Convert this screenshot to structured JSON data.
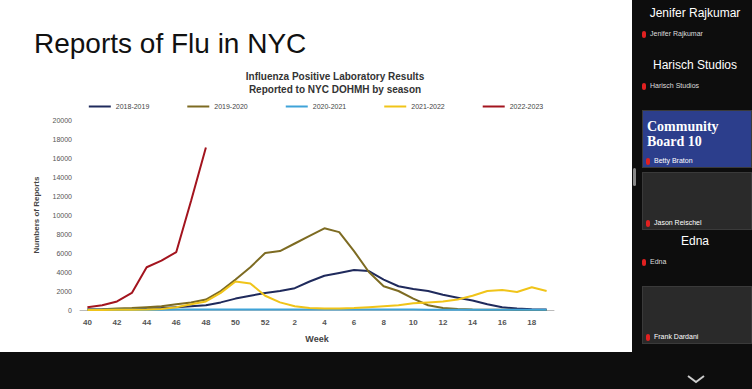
{
  "slide": {
    "title": "Reports of Flu in NYC"
  },
  "chart_data": {
    "type": "line",
    "title": "Influenza Positive Laboratory Results",
    "subtitle": "Reported to NYC DOHMH by season",
    "x_label": "Week",
    "y_label": "Numbers of Reports",
    "categories": [
      "40",
      null,
      "42",
      null,
      "44",
      null,
      "46",
      null,
      "48",
      null,
      "50",
      null,
      "52",
      null,
      "2",
      null,
      "4",
      null,
      "6",
      null,
      "8",
      null,
      "10",
      null,
      "12",
      null,
      "14",
      null,
      "16",
      null,
      "18",
      null
    ],
    "series": [
      {
        "name": "2018-2019",
        "color": "#1f2a5c",
        "values": [
          50,
          60,
          80,
          100,
          150,
          200,
          300,
          400,
          500,
          800,
          1200,
          1500,
          1800,
          2000,
          2300,
          3000,
          3600,
          3900,
          4200,
          4100,
          3200,
          2500,
          2200,
          2000,
          1600,
          1300,
          1000,
          600,
          300,
          150,
          80,
          50
        ]
      },
      {
        "name": "2019-2020",
        "color": "#7d6b22",
        "values": [
          50,
          80,
          150,
          200,
          300,
          400,
          600,
          800,
          1100,
          2000,
          3200,
          4500,
          6000,
          6200,
          7000,
          7800,
          8600,
          8200,
          6200,
          4000,
          2500,
          2000,
          1200,
          500,
          200,
          100,
          50,
          30,
          20,
          10,
          10,
          10
        ]
      },
      {
        "name": "2020-2021",
        "color": "#3fa3d8",
        "values": [
          20,
          20,
          30,
          30,
          30,
          30,
          40,
          40,
          40,
          50,
          50,
          50,
          60,
          60,
          60,
          60,
          50,
          50,
          50,
          40,
          40,
          40,
          40,
          30,
          30,
          30,
          30,
          30,
          20,
          20,
          20,
          20
        ]
      },
      {
        "name": "2021-2022",
        "color": "#f0c419",
        "values": [
          10,
          10,
          20,
          20,
          50,
          100,
          300,
          600,
          900,
          1800,
          3000,
          2800,
          1500,
          800,
          400,
          200,
          150,
          150,
          200,
          300,
          400,
          500,
          700,
          800,
          900,
          1100,
          1500,
          2000,
          2100,
          1900,
          2400,
          2000
        ]
      },
      {
        "name": "2022-2023",
        "color": "#a3141e",
        "values": [
          300,
          500,
          900,
          1800,
          4500,
          5200,
          6100,
          11500,
          17100,
          null,
          null,
          null,
          null,
          null,
          null,
          null,
          null,
          null,
          null,
          null,
          null,
          null,
          null,
          null,
          null,
          null,
          null,
          null,
          null,
          null,
          null,
          null
        ]
      }
    ],
    "ylim": [
      0,
      20000
    ],
    "yticks": [
      0,
      2000,
      4000,
      6000,
      8000,
      10000,
      12000,
      14000,
      16000,
      18000,
      20000
    ],
    "grid": false,
    "legend": "top"
  },
  "participants": [
    {
      "heading": "Jenifer Rajkumar",
      "label": "Jenifer Rajkumar"
    },
    {
      "heading": "Harisch Studios",
      "label": "Harisch Studios"
    },
    {
      "label": "Betty Braton",
      "tile_text": "Community Board 10"
    },
    {
      "label": "Jason Reischel"
    },
    {
      "heading": "Edna",
      "label": "Edna"
    },
    {
      "label": "Frank Dardani"
    }
  ]
}
